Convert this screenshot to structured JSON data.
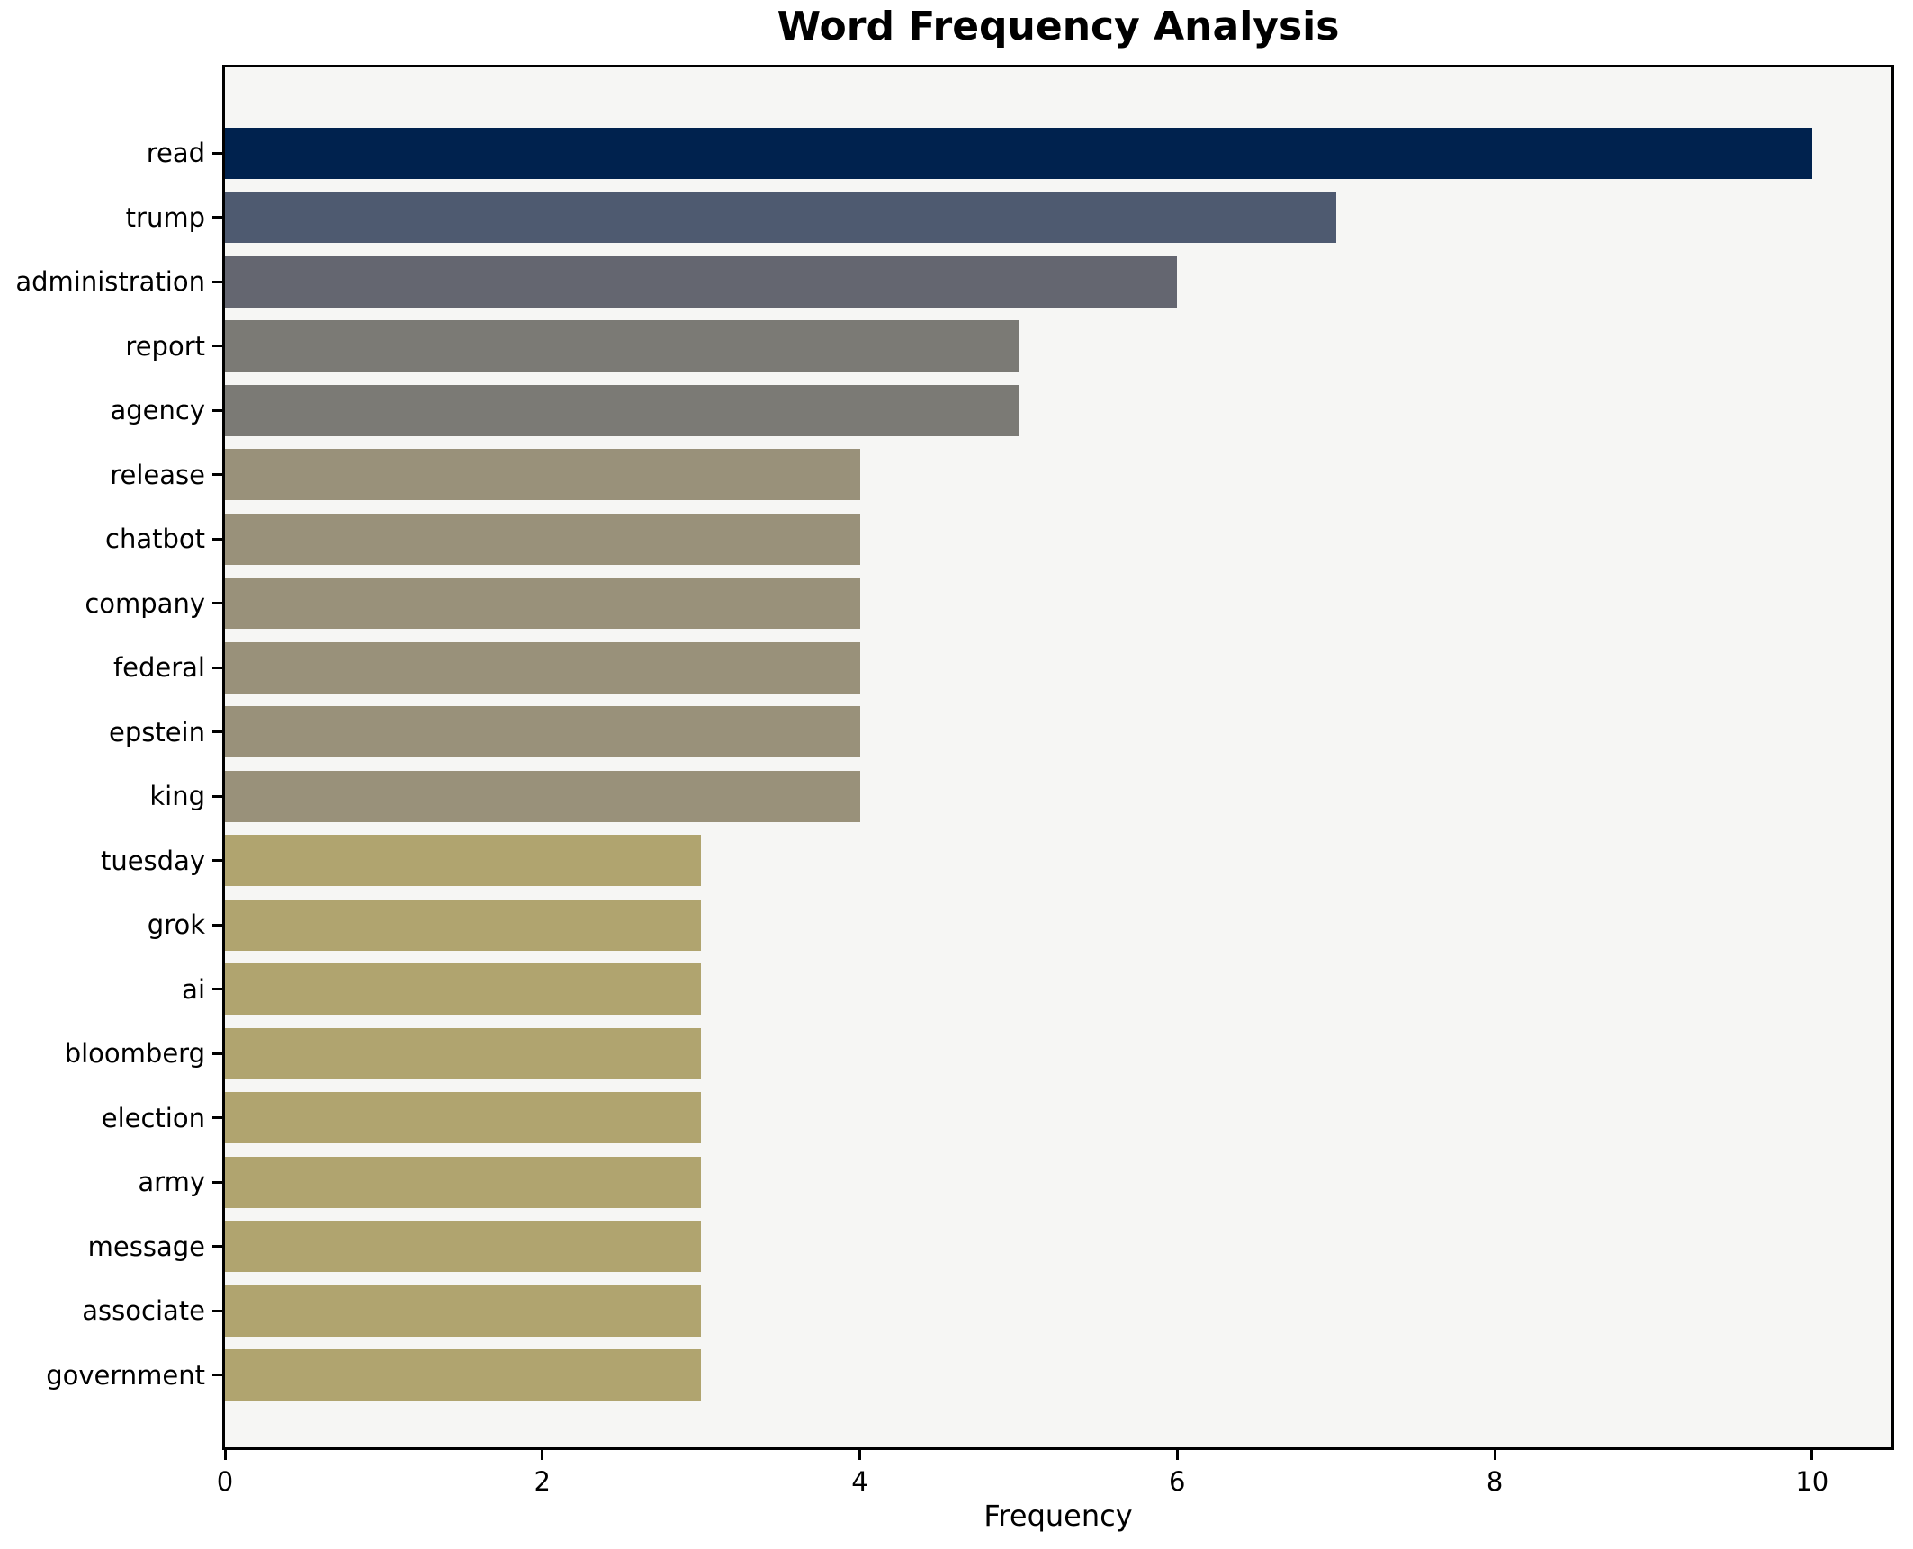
{
  "figure": {
    "title": "Word Frequency Analysis",
    "background_color": "#ffffff",
    "plot_background_color": "#f6f6f4",
    "spine_color": "#000000"
  },
  "chart_data": {
    "type": "bar",
    "orientation": "horizontal",
    "title": "Word Frequency Analysis",
    "xlabel": "Frequency",
    "ylabel": "",
    "categories": [
      "read",
      "trump",
      "administration",
      "report",
      "agency",
      "release",
      "chatbot",
      "company",
      "federal",
      "epstein",
      "king",
      "tuesday",
      "grok",
      "ai",
      "bloomberg",
      "election",
      "army",
      "message",
      "associate",
      "government"
    ],
    "values": [
      10,
      7,
      6,
      5,
      5,
      4,
      4,
      4,
      4,
      4,
      4,
      3,
      3,
      3,
      3,
      3,
      3,
      3,
      3,
      3
    ],
    "bar_colors": [
      "#00224e",
      "#4e5a70",
      "#646670",
      "#7b7a75",
      "#7b7a75",
      "#99917a",
      "#99917a",
      "#99917a",
      "#99917a",
      "#99917a",
      "#99917a",
      "#b0a46f",
      "#b0a46f",
      "#b0a46f",
      "#b0a46f",
      "#b0a46f",
      "#b0a46f",
      "#b0a46f",
      "#b0a46f",
      "#b0a46f"
    ],
    "x_ticks": [
      0,
      2,
      4,
      6,
      8,
      10
    ],
    "xlim": [
      0,
      10.5
    ],
    "grid": false,
    "legend": null,
    "colormap": "cividis"
  }
}
